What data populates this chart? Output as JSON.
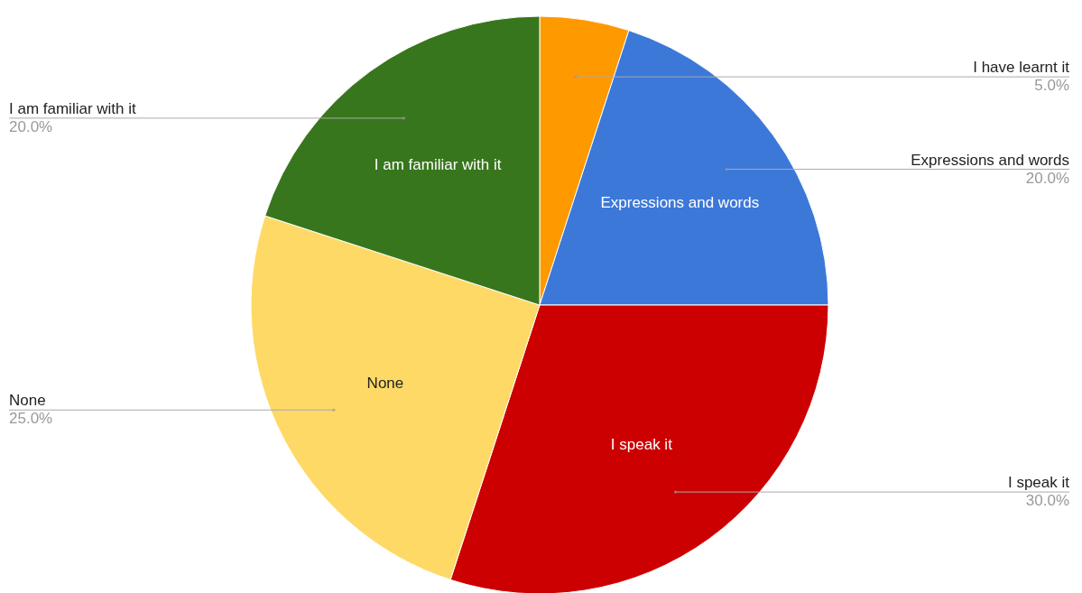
{
  "chart_data": {
    "type": "pie",
    "categories": [
      "I have learnt it",
      "Expressions and words",
      "I speak it",
      "None",
      "I am familiar with it"
    ],
    "values": [
      5,
      20,
      30,
      25,
      20
    ],
    "colors": [
      "#ff9900",
      "#3c78d8",
      "#cc0000",
      "#ffd966",
      "#38761d"
    ],
    "value_labels": [
      "5.0%",
      "20.0%",
      "30.0%",
      "25.0%",
      "20.0%"
    ]
  }
}
